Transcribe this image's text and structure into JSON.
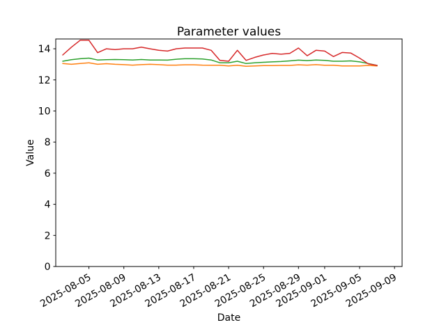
{
  "chart_data": {
    "type": "line",
    "title": "Parameter values",
    "xlabel": "Date",
    "ylabel": "Value",
    "grid": false,
    "legend": "none",
    "background_color": "#ffffff",
    "axes_color": "#000000",
    "ylim": [
      0,
      14.63
    ],
    "yticks": [
      0,
      2,
      4,
      6,
      8,
      10,
      12,
      14
    ],
    "xticks": [
      "2025-08-05",
      "2025-08-09",
      "2025-08-13",
      "2025-08-17",
      "2025-08-21",
      "2025-08-25",
      "2025-08-29",
      "2025-09-01",
      "2025-09-05",
      "2025-09-09"
    ],
    "x": [
      "2025-08-02",
      "2025-08-03",
      "2025-08-04",
      "2025-08-05",
      "2025-08-06",
      "2025-08-07",
      "2025-08-08",
      "2025-08-09",
      "2025-08-10",
      "2025-08-11",
      "2025-08-12",
      "2025-08-13",
      "2025-08-14",
      "2025-08-15",
      "2025-08-16",
      "2025-08-17",
      "2025-08-18",
      "2025-08-19",
      "2025-08-20",
      "2025-08-21",
      "2025-08-22",
      "2025-08-23",
      "2025-08-24",
      "2025-08-25",
      "2025-08-26",
      "2025-08-27",
      "2025-08-28",
      "2025-08-29",
      "2025-08-30",
      "2025-08-31",
      "2025-09-01",
      "2025-09-02",
      "2025-09-03",
      "2025-09-04",
      "2025-09-05",
      "2025-09-06",
      "2025-09-07"
    ],
    "series": [
      {
        "name": "orange",
        "color": "#ff7f0e",
        "values": [
          13.05,
          13.0,
          13.05,
          13.1,
          13.0,
          13.04,
          13.0,
          12.98,
          12.95,
          12.98,
          13.0,
          12.98,
          12.95,
          12.95,
          12.97,
          12.97,
          12.95,
          12.94,
          12.94,
          12.9,
          12.94,
          12.87,
          12.9,
          12.92,
          12.92,
          12.93,
          12.93,
          12.97,
          12.95,
          12.98,
          12.94,
          12.94,
          12.9,
          12.9,
          12.9,
          12.93,
          12.9
        ]
      },
      {
        "name": "green",
        "color": "#2ca02c",
        "values": [
          13.2,
          13.3,
          13.36,
          13.4,
          13.28,
          13.3,
          13.31,
          13.3,
          13.28,
          13.31,
          13.28,
          13.28,
          13.27,
          13.33,
          13.36,
          13.36,
          13.34,
          13.28,
          13.1,
          13.1,
          13.2,
          13.05,
          13.1,
          13.13,
          13.16,
          13.18,
          13.22,
          13.27,
          13.24,
          13.28,
          13.25,
          13.2,
          13.2,
          13.22,
          13.16,
          13.05,
          12.93
        ]
      },
      {
        "name": "red",
        "color": "#d62728",
        "values": [
          13.6,
          14.1,
          14.55,
          14.55,
          13.75,
          14.0,
          13.95,
          14.0,
          14.0,
          14.1,
          14.0,
          13.9,
          13.85,
          14.0,
          14.05,
          14.05,
          14.05,
          13.9,
          13.25,
          13.2,
          13.9,
          13.25,
          13.45,
          13.6,
          13.7,
          13.65,
          13.7,
          14.05,
          13.55,
          13.9,
          13.85,
          13.5,
          13.76,
          13.72,
          13.4,
          13.03,
          12.93
        ]
      }
    ]
  }
}
